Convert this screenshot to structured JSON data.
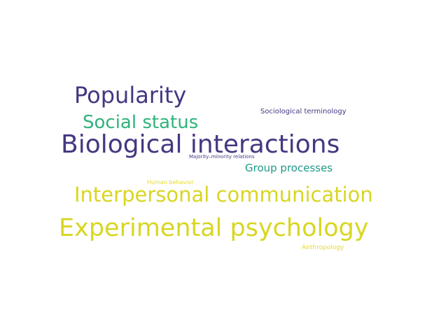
{
  "wordcloud": {
    "words": [
      {
        "text": "Popularity",
        "color": "#453781"
      },
      {
        "text": "Sociological terminology",
        "color": "#453781"
      },
      {
        "text": "Social status",
        "color": "#2fb47c"
      },
      {
        "text": "Biological interactions",
        "color": "#453781"
      },
      {
        "text": "Majority–minority relations",
        "color": "#453781"
      },
      {
        "text": "Group processes",
        "color": "#1f9a8a"
      },
      {
        "text": "Human behavior",
        "color": "#e6db2b"
      },
      {
        "text": "Interpersonal communication",
        "color": "#d8d622"
      },
      {
        "text": "Experimental psychology",
        "color": "#d8d622"
      },
      {
        "text": "Anthropology",
        "color": "#e6db2b"
      }
    ]
  }
}
